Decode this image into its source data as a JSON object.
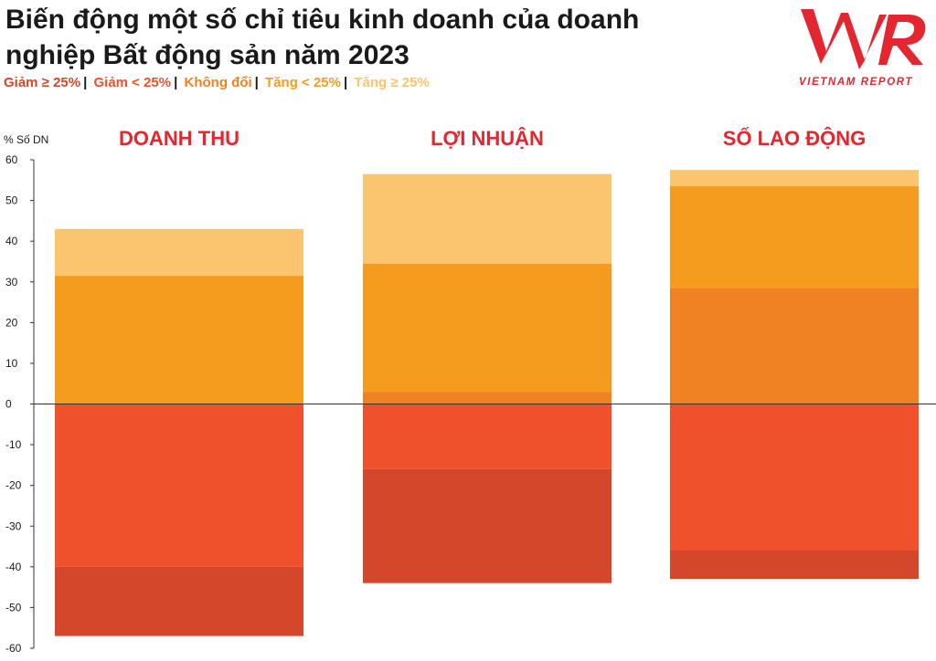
{
  "title": "Biến động một số chỉ tiêu kinh doanh của doanh nghiệp Bất động sản năm 2023",
  "legend": [
    {
      "label": "Giảm ≥ 25%",
      "color": "#d4472a"
    },
    {
      "label": "Giảm < 25%",
      "color": "#ef512c"
    },
    {
      "label": "Không đổi",
      "color": "#f08224"
    },
    {
      "label": "Tăng < 25%",
      "color": "#f59c1e"
    },
    {
      "label": "Tăng ≥ 25%",
      "color": "#fbc46e"
    }
  ],
  "logo": {
    "brand": "VNR",
    "tagline": "VIETNAM REPORT",
    "color": "#e3262f"
  },
  "chart_data": {
    "type": "bar",
    "stacked": true,
    "ylabel": "% Số DN",
    "ylim": [
      -60,
      60
    ],
    "yticks": [
      60,
      50,
      40,
      30,
      20,
      10,
      0,
      -10,
      -20,
      -30,
      -40,
      -50,
      -60
    ],
    "categories": [
      "DOANH THU",
      "LỢI NHUẬN",
      "SỐ LAO ĐỘNG"
    ],
    "series": [
      {
        "name": "Giảm ≥ 25%",
        "color": "#d4472a",
        "values": [
          -17,
          -28,
          -7
        ]
      },
      {
        "name": "Giảm < 25%",
        "color": "#ef512c",
        "values": [
          -40,
          -16,
          -36
        ]
      },
      {
        "name": "Không đổi",
        "color": "#f08224",
        "values": [
          0,
          3,
          28.5
        ]
      },
      {
        "name": "Tăng < 25%",
        "color": "#f59c1e",
        "values": [
          31.5,
          31.5,
          25
        ]
      },
      {
        "name": "Tăng ≥ 25%",
        "color": "#fbc46e",
        "values": [
          11.5,
          22,
          4
        ]
      }
    ]
  }
}
